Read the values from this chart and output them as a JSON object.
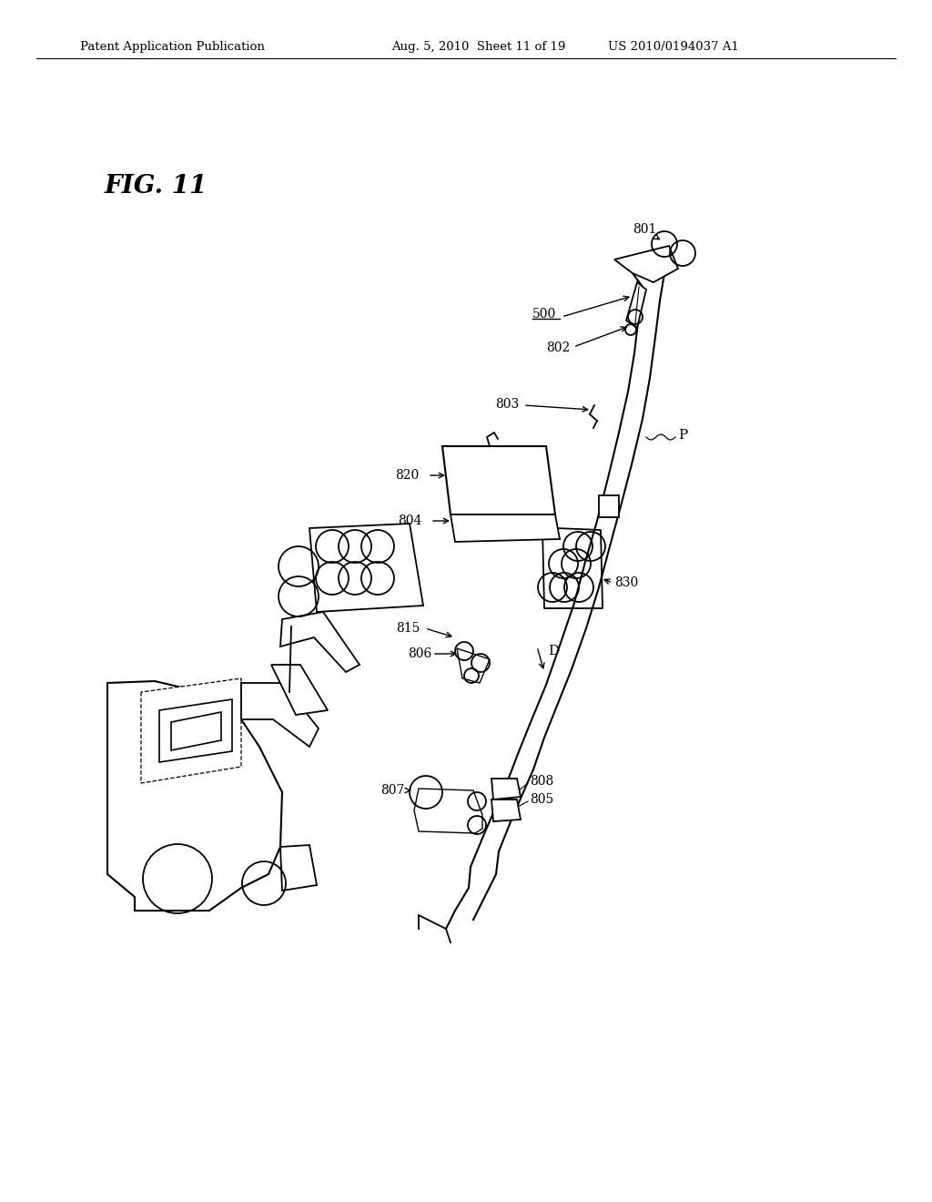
{
  "header_left": "Patent Application Publication",
  "header_mid": "Aug. 5, 2010  Sheet 11 of 19",
  "header_right": "US 2010/0194037 A1",
  "bg_color": "#ffffff",
  "line_color": "#000000",
  "fig_label": "FIG. 11"
}
